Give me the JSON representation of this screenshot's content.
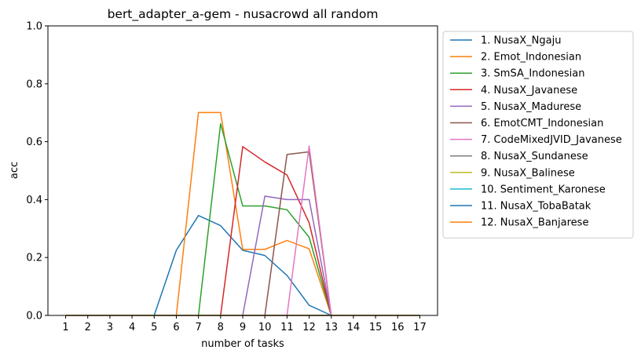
{
  "chart_data": {
    "type": "line",
    "title": "bert_adapter_a-gem - nusacrowd all random",
    "xlabel": "number of tasks",
    "ylabel": "acc",
    "x": [
      1,
      2,
      3,
      4,
      5,
      6,
      7,
      8,
      9,
      10,
      11,
      12,
      13,
      14,
      15,
      16,
      17
    ],
    "xlim": [
      0.2,
      17.8
    ],
    "ylim": [
      0,
      1
    ],
    "yticks": [
      0.0,
      0.2,
      0.4,
      0.6,
      0.8,
      1.0
    ],
    "ytick_labels": [
      "0.0",
      "0.2",
      "0.4",
      "0.6",
      "0.8",
      "1.0"
    ],
    "legend_position": "outside-right-top",
    "grid": false,
    "series": [
      {
        "name": "1. NusaX_Ngaju",
        "color": "#1f77b4",
        "values": [
          0,
          0,
          0,
          0,
          0,
          0.225,
          0.345,
          0.31,
          0.225,
          0.207,
          0.138,
          0.035,
          0,
          0,
          0,
          0,
          0
        ]
      },
      {
        "name": "2. Emot_Indonesian",
        "color": "#ff7f0e",
        "values": [
          0,
          0,
          0,
          0,
          0,
          0,
          0.701,
          0.701,
          0.228,
          0.228,
          0.259,
          0.23,
          0,
          0,
          0,
          0,
          0
        ]
      },
      {
        "name": "3. SmSA_Indonesian",
        "color": "#2ca02c",
        "values": [
          0,
          0,
          0,
          0,
          0,
          0,
          0,
          0.662,
          0.378,
          0.378,
          0.365,
          0.27,
          0,
          0,
          0,
          0,
          0
        ]
      },
      {
        "name": "4. NusaX_Javanese",
        "color": "#d62728",
        "values": [
          0,
          0,
          0,
          0,
          0,
          0,
          0,
          0,
          0.583,
          0.53,
          0.485,
          0.32,
          0,
          0,
          0,
          0,
          0
        ]
      },
      {
        "name": "5. NusaX_Madurese",
        "color": "#9467bd",
        "values": [
          0,
          0,
          0,
          0,
          0,
          0,
          0,
          0,
          0,
          0.412,
          0.4,
          0.4,
          0,
          0,
          0,
          0,
          0
        ]
      },
      {
        "name": "6. EmotCMT_Indonesian",
        "color": "#8c564b",
        "values": [
          0,
          0,
          0,
          0,
          0,
          0,
          0,
          0,
          0,
          0,
          0.556,
          0.565,
          0,
          0,
          0,
          0,
          0
        ]
      },
      {
        "name": "7. CodeMixedJVID_Javanese",
        "color": "#e377c2",
        "values": [
          0,
          0,
          0,
          0,
          0,
          0,
          0,
          0,
          0,
          0,
          0,
          0.585,
          0,
          0,
          0,
          0,
          0
        ]
      },
      {
        "name": "8. NusaX_Sundanese",
        "color": "#7f7f7f",
        "values": [
          0,
          0,
          0,
          0,
          0,
          0,
          0,
          0,
          0,
          0,
          0,
          0,
          0,
          0,
          0,
          0,
          0
        ]
      },
      {
        "name": "9. NusaX_Balinese",
        "color": "#bcbd22",
        "values": [
          0,
          0,
          0,
          0,
          0,
          0,
          0,
          0,
          0,
          0,
          0,
          0,
          0,
          0,
          0,
          0,
          0
        ]
      },
      {
        "name": "10. Sentiment_Karonese",
        "color": "#17becf",
        "values": [
          0,
          0,
          0,
          0,
          0,
          0,
          0,
          0,
          0,
          0,
          0,
          0,
          0,
          0,
          0,
          0,
          0
        ]
      },
      {
        "name": "11. NusaX_TobaBatak",
        "color": "#1f77b4",
        "values": [
          0,
          0,
          0,
          0,
          0,
          0,
          0,
          0,
          0,
          0,
          0,
          0,
          0,
          0,
          0,
          0,
          0
        ]
      },
      {
        "name": "12. NusaX_Banjarese",
        "color": "#ff7f0e",
        "values": [
          0,
          0,
          0,
          0,
          0,
          0,
          0,
          0,
          0,
          0,
          0,
          0,
          0,
          0,
          0,
          0,
          0
        ]
      }
    ]
  }
}
